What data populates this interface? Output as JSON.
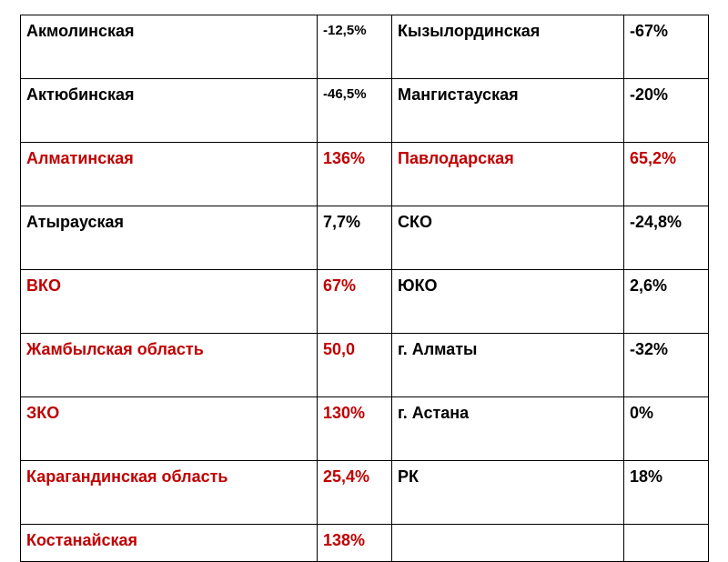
{
  "colors": {
    "highlight": "#c00000",
    "normal": "#000000",
    "border": "#000000"
  },
  "table": {
    "rows": [
      [
        {
          "text": "Акмолинская",
          "hl": false
        },
        {
          "text": "-12,5%",
          "hl": false,
          "small": true
        },
        {
          "text": "Кызылординская",
          "hl": false
        },
        {
          "text": "-67%",
          "hl": false
        }
      ],
      [
        {
          "text": "Актюбинская",
          "hl": false
        },
        {
          "text": "-46,5%",
          "hl": false,
          "small": true
        },
        {
          "text": "Мангистауская",
          "hl": false
        },
        {
          "text": "-20%",
          "hl": false
        }
      ],
      [
        {
          "text": "Алматинская",
          "hl": true
        },
        {
          "text": "136%",
          "hl": true
        },
        {
          "text": "Павлодарская",
          "hl": true
        },
        {
          "text": "65,2%",
          "hl": true
        }
      ],
      [
        {
          "text": "Атырауская",
          "hl": false
        },
        {
          "text": "7,7%",
          "hl": false
        },
        {
          "text": "СКО",
          "hl": false
        },
        {
          "text": "-24,8%",
          "hl": false
        }
      ],
      [
        {
          "text": "ВКО",
          "hl": true
        },
        {
          "text": "67%",
          "hl": true
        },
        {
          "text": "ЮКО",
          "hl": false
        },
        {
          "text": "2,6%",
          "hl": false
        }
      ],
      [
        {
          "text": "Жамбылская область",
          "hl": true
        },
        {
          "text": "50,0",
          "hl": true
        },
        {
          "text": "г. Алматы",
          "hl": false
        },
        {
          "text": "-32%",
          "hl": false
        }
      ],
      [
        {
          "text": "ЗКО",
          "hl": true
        },
        {
          "text": "130%",
          "hl": true
        },
        {
          "text": "г. Астана",
          "hl": false
        },
        {
          "text": "0%",
          "hl": false
        }
      ],
      [
        {
          "text": "Карагандинская область",
          "hl": true
        },
        {
          "text": "25,4%",
          "hl": true
        },
        {
          "text": "РК",
          "hl": false
        },
        {
          "text": "18%",
          "hl": false
        }
      ],
      [
        {
          "text": "Костанайская",
          "hl": true
        },
        {
          "text": "138%",
          "hl": true
        },
        {
          "text": "",
          "hl": false
        },
        {
          "text": "",
          "hl": false
        }
      ]
    ]
  }
}
